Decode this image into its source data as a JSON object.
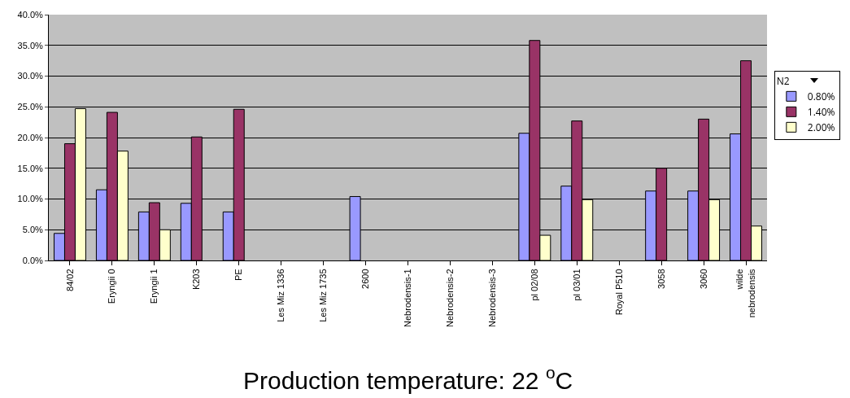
{
  "chart_data": {
    "type": "bar",
    "xlabel": "Production temperature: 22 $^{o}$C",
    "legend_title": "N2",
    "categories": [
      "84/02",
      "Eryngii 0",
      "Eryngii 1",
      "K203",
      "PE",
      "Les Miz 1336",
      "Les Miz 1735",
      "2600",
      "Nebrodensis-1",
      "Nebrodensis-2",
      "Nebrodensis-3",
      "pl 02/08",
      "pl 03/01",
      "Royal P510",
      "3058",
      "3060",
      "wilde nebrodensis"
    ],
    "series": [
      {
        "name": "0.80%",
        "color": "#9999ff",
        "values": [
          4.4,
          11.5,
          7.9,
          9.3,
          7.9,
          null,
          null,
          10.4,
          null,
          null,
          null,
          20.7,
          12.1,
          null,
          11.3,
          11.3,
          20.6
        ]
      },
      {
        "name": "1.40%",
        "color": "#993366",
        "values": [
          19.0,
          24.1,
          9.4,
          20.1,
          24.6,
          null,
          null,
          null,
          null,
          null,
          null,
          35.8,
          22.7,
          null,
          15.0,
          23.0,
          32.5
        ]
      },
      {
        "name": "2.00%",
        "color": "#ffffcc",
        "values": [
          24.7,
          17.8,
          5.0,
          null,
          null,
          null,
          null,
          null,
          null,
          null,
          null,
          4.1,
          9.9,
          null,
          null,
          9.9,
          5.6
        ]
      }
    ],
    "ylim": [
      0,
      40
    ],
    "yticks": [
      {
        "value": 0,
        "label": "0.0%"
      },
      {
        "value": 5,
        "label": "5.0%"
      },
      {
        "value": 10,
        "label": "10.0%"
      },
      {
        "value": 15,
        "label": "15.0%"
      },
      {
        "value": 20,
        "label": "20.0%"
      },
      {
        "value": 25,
        "label": "25.0%"
      },
      {
        "value": 30,
        "label": "30.0%"
      },
      {
        "value": 35,
        "label": "35.0%"
      },
      {
        "value": 40,
        "label": "40.0%"
      }
    ],
    "grid": "y",
    "legend": "right"
  }
}
